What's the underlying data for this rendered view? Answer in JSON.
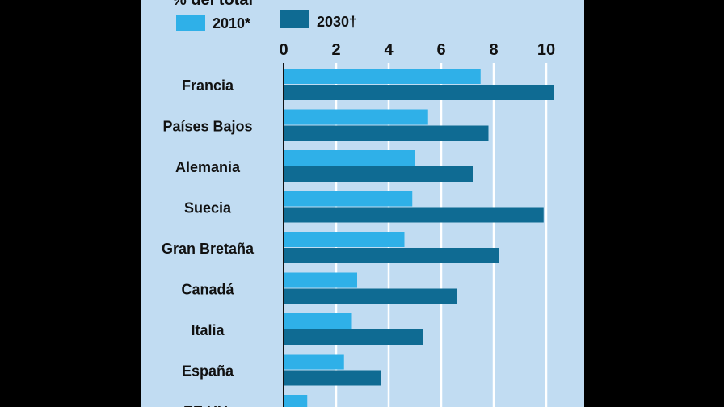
{
  "colors": {
    "page_background": "#000000",
    "panel_background": "#c1dcf2",
    "series_2010": "#2fb0e8",
    "series_2030": "#0f6b93",
    "gridline": "#ffffff",
    "axis": "#111111"
  },
  "chart_data": {
    "type": "bar",
    "orientation": "horizontal",
    "subtitle": "% del total",
    "categories": [
      "Francia",
      "Países Bajos",
      "Alemania",
      "Suecia",
      "Gran Bretaña",
      "Canadá",
      "Italia",
      "España",
      "EE.UU."
    ],
    "series": [
      {
        "name": "2010*",
        "values": [
          7.5,
          5.5,
          5.0,
          4.9,
          4.6,
          2.8,
          2.6,
          2.3,
          0.9
        ]
      },
      {
        "name": "2030†",
        "values": [
          10.3,
          7.8,
          7.2,
          9.9,
          8.2,
          6.6,
          5.3,
          3.7,
          null
        ]
      }
    ],
    "xlim": [
      0,
      11
    ],
    "xticks": [
      "0",
      "2",
      "4",
      "6",
      "8",
      "10"
    ],
    "grid": true,
    "legend": "top-left"
  }
}
